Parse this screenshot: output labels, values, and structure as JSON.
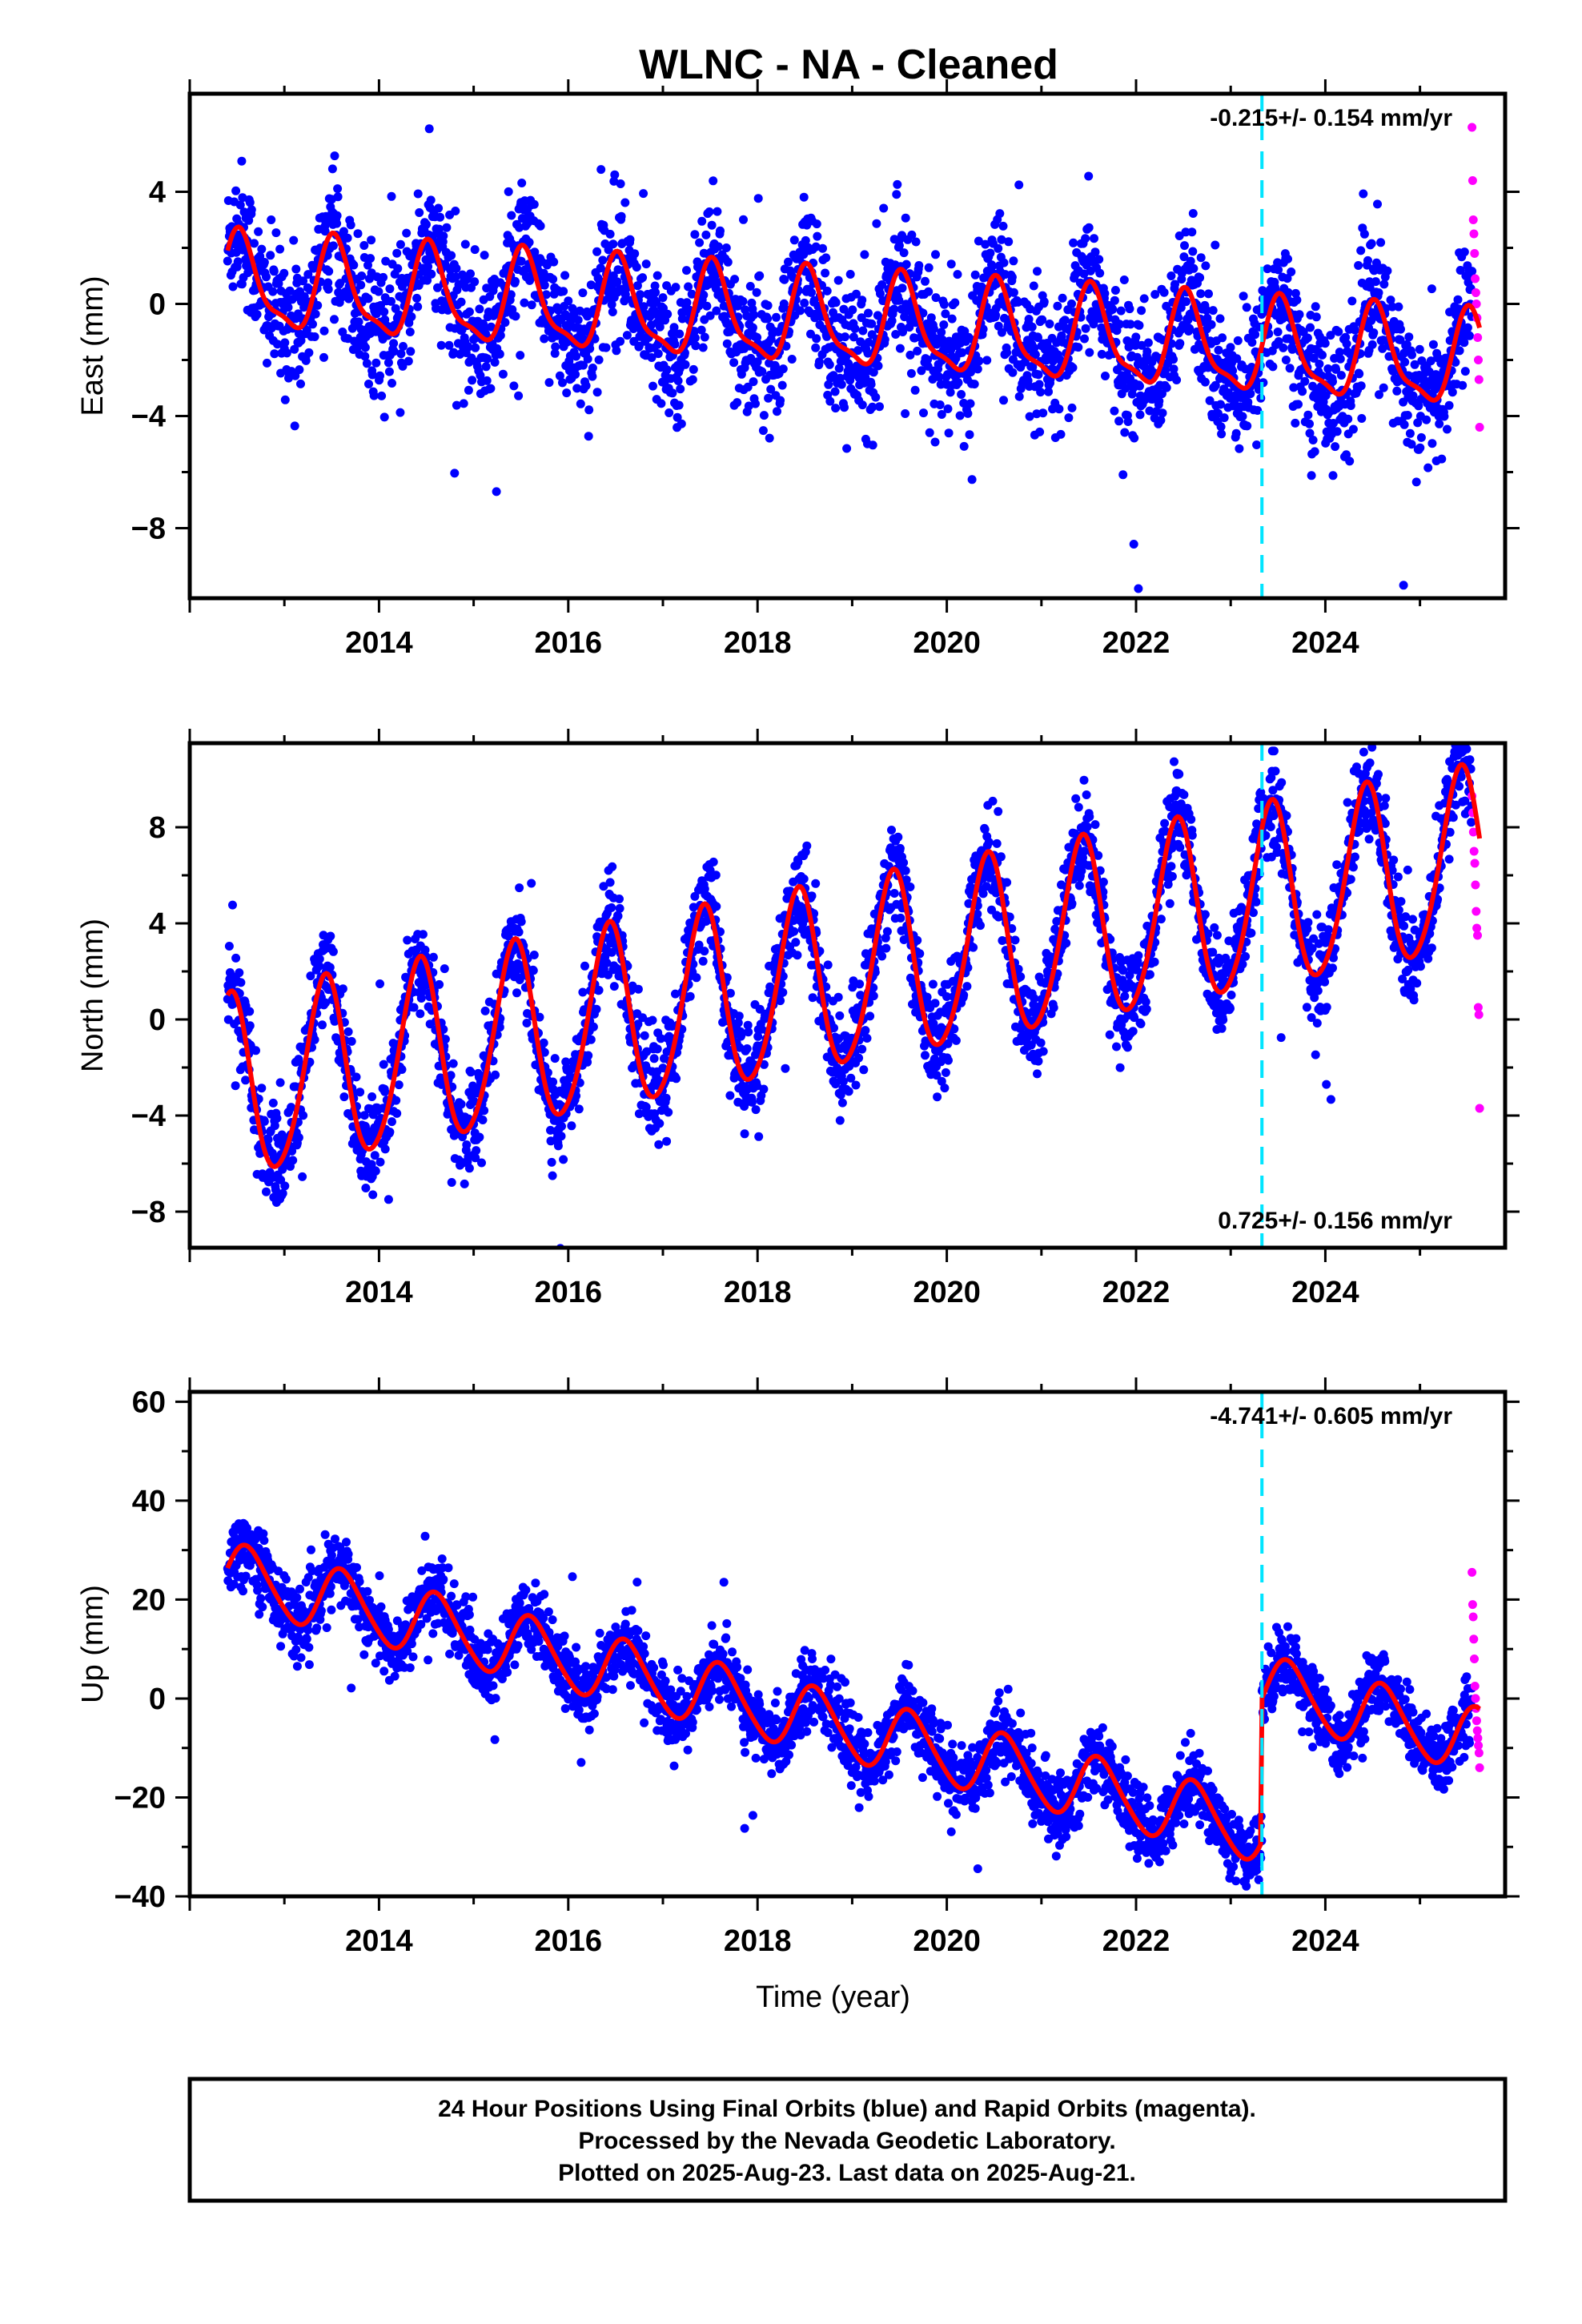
{
  "title": "WLNC  - NA - Cleaned",
  "colors": {
    "final": "#0000ff",
    "rapid": "#ff00ff",
    "model": "#ff0000",
    "event": "#00e5ff"
  },
  "footer": {
    "line1": "24 Hour Positions Using Final Orbits (blue) and Rapid Orbits (magenta).",
    "line2": "Processed by the Nevada Geodetic Laboratory.",
    "line3": "Plotted on 2025-Aug-23. Last data on 2025-Aug-21."
  },
  "chart_data": [
    {
      "type": "scatter",
      "ylabel": "East (mm)",
      "xlabel": "",
      "xlim": [
        2012.0,
        2025.9
      ],
      "ylim": [
        -10.5,
        7.5
      ],
      "xticks": [
        "2014",
        "2016",
        "2018",
        "2020",
        "2022",
        "2024"
      ],
      "yticks": [
        "4",
        "0",
        "−4",
        "−8"
      ],
      "rate_text": "-0.215+/- 0.154 mm/yr",
      "rate_position": "top-right",
      "event_line_x": 2023.33,
      "model": {
        "offset": 0.7,
        "trend": -0.215,
        "annual_amp": 1.6,
        "semiannual_amp": 0.5,
        "phase": 0.7
      },
      "series": [
        {
          "name": "Final Orbits (blue)",
          "start": 2012.4,
          "end": 2025.55,
          "noise": 1.2
        },
        {
          "name": "Rapid Orbits (magenta)",
          "start": 2025.55,
          "end": 2025.63,
          "values": [
            6.3,
            4.4,
            3.0,
            2.5,
            1.8,
            0.9,
            0.4,
            0.0,
            -0.5,
            -1.2,
            -2.0,
            -2.7,
            -4.4
          ]
        }
      ]
    },
    {
      "type": "scatter",
      "ylabel": "North (mm)",
      "xlabel": "",
      "xlim": [
        2012.0,
        2025.9
      ],
      "ylim": [
        -9.5,
        11.5
      ],
      "xticks": [
        "2014",
        "2016",
        "2018",
        "2020",
        "2022",
        "2024"
      ],
      "yticks": [
        "8",
        "4",
        "0",
        "−4",
        "−8"
      ],
      "rate_text": "0.725+/- 0.156 mm/yr",
      "rate_position": "bottom-right",
      "event_line_x": 2023.33,
      "model": {
        "offset": -3.0,
        "trend": 0.725,
        "annual_amp": 3.8,
        "semiannual_amp": 0.4,
        "phase": 1.4
      },
      "series": [
        {
          "name": "Final Orbits (blue)",
          "start": 2012.4,
          "end": 2025.55,
          "noise": 1.0
        },
        {
          "name": "Rapid Orbits (magenta)",
          "start": 2025.55,
          "end": 2025.63,
          "values": [
            9.3,
            8.6,
            7.8,
            7.0,
            6.5,
            5.6,
            4.5,
            3.8,
            3.5,
            0.5,
            0.2,
            -3.7
          ]
        }
      ]
    },
    {
      "type": "scatter",
      "ylabel": "Up (mm)",
      "xlabel": "Time (year)",
      "xlim": [
        2012.0,
        2025.9
      ],
      "ylim": [
        -40,
        62
      ],
      "xticks": [
        "2014",
        "2016",
        "2018",
        "2020",
        "2022",
        "2024"
      ],
      "yticks": [
        "60",
        "40",
        "20",
        "0",
        "−20",
        "−40"
      ],
      "rate_text": "-4.741+/- 0.605 mm/yr",
      "rate_position": "top-right",
      "event_line_x": 2023.33,
      "model": {
        "offset": 25,
        "trend": -4.741,
        "annual_amp": 6.5,
        "semiannual_amp": 0.8,
        "phase": 0.2,
        "step_at": 2023.33,
        "step": 29
      },
      "series": [
        {
          "name": "Final Orbits (blue)",
          "start": 2012.4,
          "end": 2025.55,
          "noise": 3.5
        },
        {
          "name": "Rapid Orbits (magenta)",
          "start": 2025.55,
          "end": 2025.63,
          "values": [
            25.5,
            19.0,
            16.5,
            12.0,
            8.0,
            2.5,
            0.0,
            -2.0,
            -4.5,
            -6.5,
            -8.0,
            -9.5,
            -11.0,
            -14.0
          ]
        }
      ]
    }
  ]
}
